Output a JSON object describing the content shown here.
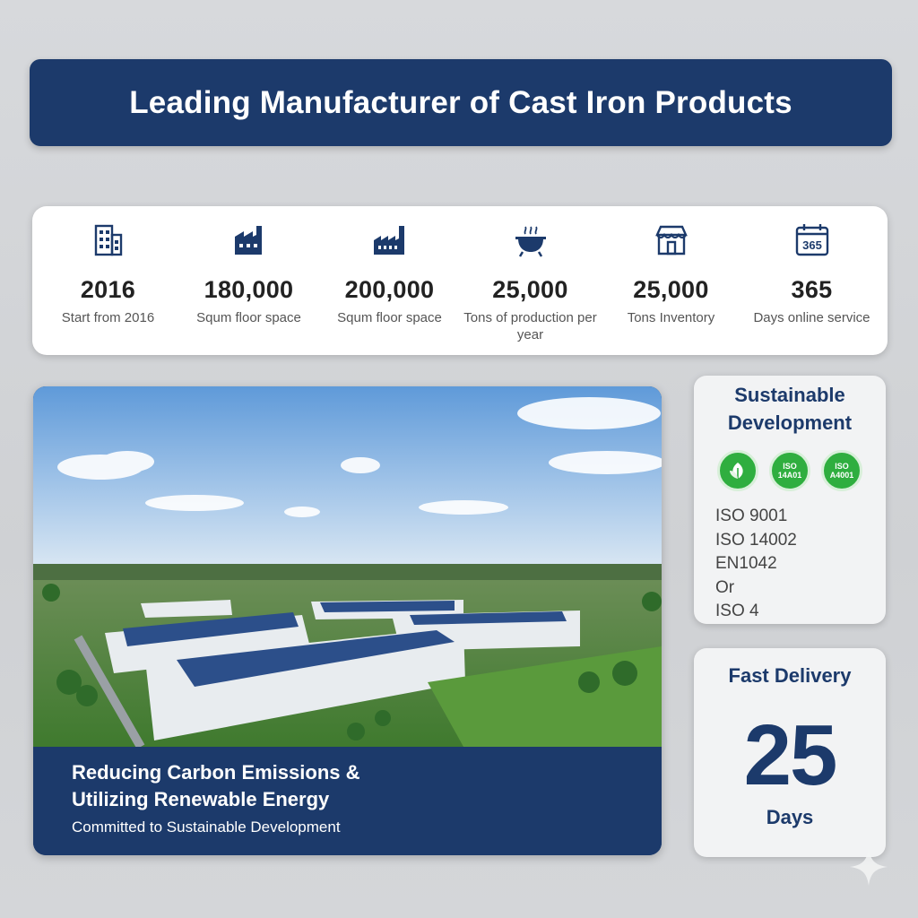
{
  "header": {
    "title": "Leading Manufacturer of Cast Iron Products"
  },
  "stats": [
    {
      "icon": "office-building-icon",
      "value": "2016",
      "label": "Start from 2016"
    },
    {
      "icon": "factory-icon",
      "value": "180,000",
      "label": "Squm floor space"
    },
    {
      "icon": "factory-chimney-icon",
      "value": "200,000",
      "label": "Squm floor space"
    },
    {
      "icon": "cauldron-icon",
      "value": "25,000",
      "label": "Tons of production per year"
    },
    {
      "icon": "storefront-icon",
      "value": "25,000",
      "label": "Tons Inventory"
    },
    {
      "icon": "calendar-icon",
      "value": "365",
      "label": "Days online service",
      "icon_text": "365"
    }
  ],
  "feature": {
    "image": "factory-solar-panels-aerial-photo",
    "line1": "Reducing Carbon Emissions &",
    "line2": "Utilizing Renewable Energy",
    "subtitle": "Committed to Sustainable Development"
  },
  "sustainability": {
    "title_line1": "Sustainable",
    "title_line2": "Development",
    "badges": [
      {
        "icon": "leaf-icon",
        "text": ""
      },
      {
        "icon": "iso-badge-icon",
        "text": "ISO 14A01"
      },
      {
        "icon": "iso-badge-icon",
        "text": "ISO A4001"
      }
    ],
    "certifications": [
      "ISO 9001",
      "ISO 14002",
      "EN1042",
      "Or",
      "ISO 4"
    ]
  },
  "delivery": {
    "title": "Fast Delivery",
    "value": "25",
    "unit": "Days"
  },
  "colors": {
    "navy": "#1c3a6b",
    "green": "#2fae3f",
    "background": "#d4d6d9"
  }
}
